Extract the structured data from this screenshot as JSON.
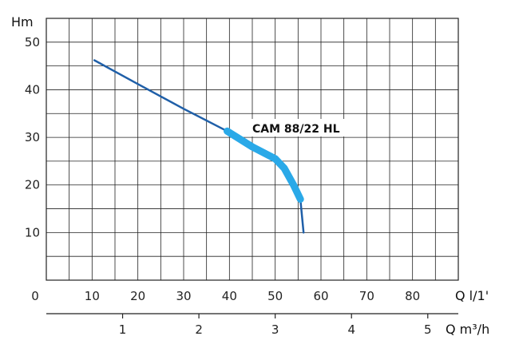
{
  "chart_data": {
    "type": "line",
    "title": "",
    "ylabel": "Hm",
    "xlabel": "Q l/1'",
    "x2label": "Q m³/h",
    "xlim": [
      0,
      90
    ],
    "ylim": [
      0,
      55
    ],
    "x2lim": [
      0,
      5.4
    ],
    "xticks": [
      "0",
      "10",
      "20",
      "30",
      "40",
      "50",
      "60",
      "70",
      "80"
    ],
    "yticks": [
      "10",
      "20",
      "30",
      "40",
      "50"
    ],
    "x2ticks": [
      "1",
      "2",
      "3",
      "4",
      "5"
    ],
    "grid": true,
    "series": [
      {
        "name": "CAM 88/22 HL",
        "color": "#1f5fa8",
        "highlight_color": "#2aa9e8",
        "x": [
          10.5,
          20,
          30,
          39.5,
          45,
          50,
          52,
          54,
          55.5,
          56.2
        ],
        "y": [
          46.2,
          41.2,
          36,
          31.3,
          28,
          25.5,
          23.5,
          20,
          17,
          10
        ],
        "highlight_range": [
          39.5,
          55.5
        ]
      }
    ]
  }
}
